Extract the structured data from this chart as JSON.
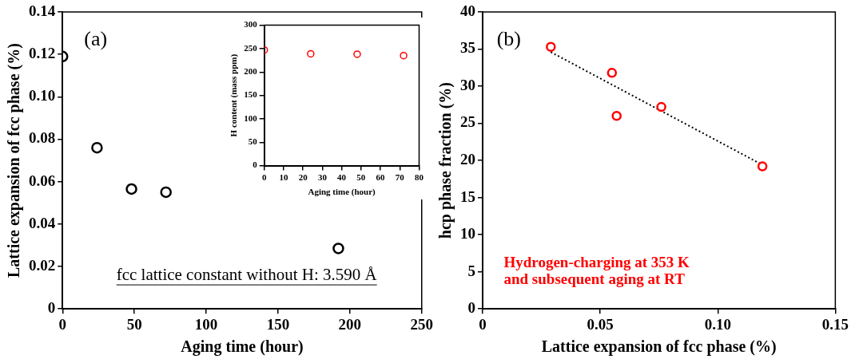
{
  "chart_data": [
    {
      "type": "scatter",
      "xlabel": "Aging time (hour)",
      "ylabel": "Lattice expansion of fcc phase (%)",
      "x": [
        0,
        24,
        48,
        72,
        192
      ],
      "series": [
        {
          "color": "#000000",
          "values": [
            0.119,
            0.076,
            0.0565,
            0.055,
            0.0285
          ]
        }
      ],
      "xlim": [
        0,
        250
      ],
      "xticks": [
        0,
        50,
        100,
        150,
        200,
        250
      ],
      "ylim": [
        0,
        0.14
      ],
      "yticks": [
        0,
        0.02,
        0.04,
        0.06,
        0.08,
        {
          "value": 0.1,
          "label": "0.10"
        },
        0.12,
        0.14
      ],
      "marker": "circle",
      "grid": false,
      "legend": false,
      "annotations": [
        "(a)",
        "fcc lattice constant without H: 3.590 Å"
      ]
    },
    {
      "type": "scatter",
      "xlabel": "Aging time (hour)",
      "ylabel": "H content (mass ppm)",
      "x": [
        0,
        24,
        48,
        72
      ],
      "series": [
        {
          "color": "#ff0000",
          "values": [
            247,
            239,
            238,
            235
          ]
        }
      ],
      "xlim": [
        0,
        80
      ],
      "xticks": [
        0,
        10,
        20,
        30,
        40,
        50,
        60,
        70,
        80
      ],
      "ylim": [
        0,
        300
      ],
      "yticks": [
        0,
        50,
        100,
        150,
        200,
        250,
        300
      ],
      "marker": "circle",
      "grid": false,
      "legend": false
    },
    {
      "type": "scatter",
      "xlabel": "Lattice expansion of fcc phase (%)",
      "ylabel": "hcp phase fraction (%)",
      "x": [
        0.029,
        0.055,
        0.057,
        0.076,
        0.119
      ],
      "series": [
        {
          "color": "#ff0000",
          "values": [
            35.3,
            31.8,
            26.0,
            27.2,
            19.2
          ]
        },
        {
          "type": "line",
          "color": "#000000",
          "x": [
            0.029,
            0.119
          ],
          "values": [
            34.6,
            19.4
          ],
          "marker": "none",
          "line_style": "dotted"
        }
      ],
      "xlim": [
        0,
        0.15
      ],
      "xticks": [
        0,
        0.05,
        {
          "value": 0.1,
          "label": "0.10"
        },
        0.15
      ],
      "ylim": [
        0,
        40
      ],
      "yticks": [
        0,
        5,
        10,
        15,
        20,
        25,
        30,
        35,
        40
      ],
      "marker": "circle",
      "grid": false,
      "legend": false,
      "annotations": [
        "(b)",
        "Hydrogen-charging at 353 K\nand subsequent aging at RT"
      ]
    }
  ]
}
